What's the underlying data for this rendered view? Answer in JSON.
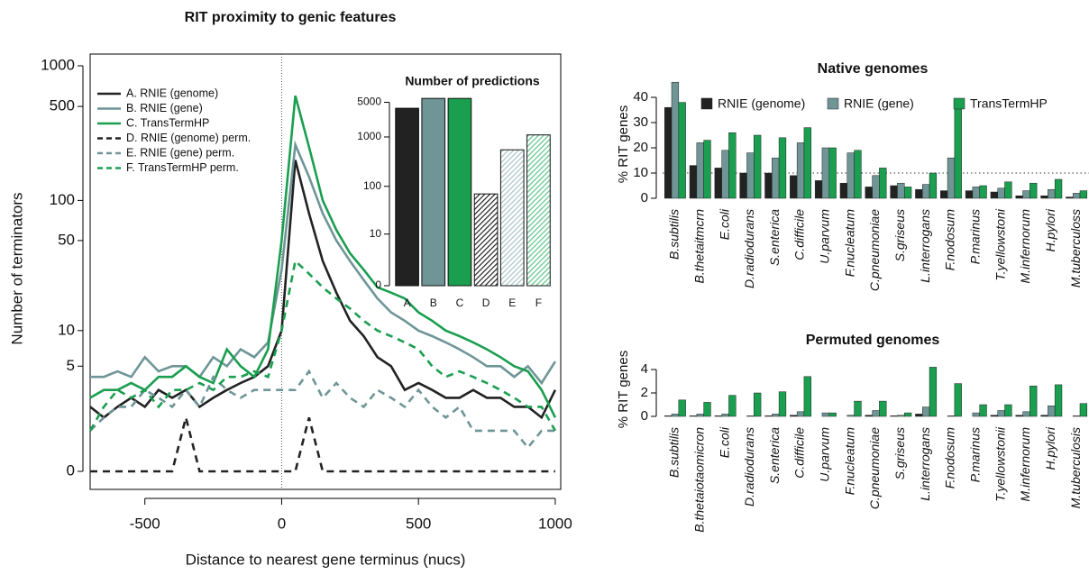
{
  "chart_data": [
    {
      "type": "line",
      "title": "RIT proximity to genic features",
      "xlabel": "Distance to nearest gene terminus (nucs)",
      "ylabel": "Number of terminators",
      "x": [
        -700,
        -650,
        -600,
        -550,
        -500,
        -450,
        -400,
        -350,
        -300,
        -250,
        -200,
        -150,
        -100,
        -50,
        0,
        50,
        100,
        150,
        200,
        250,
        300,
        350,
        400,
        450,
        500,
        550,
        600,
        650,
        700,
        750,
        800,
        850,
        900,
        950,
        1000
      ],
      "series": [
        {
          "name": "A. RNIE (genome)",
          "color": "#222222",
          "dash": false,
          "values": [
            2,
            1.5,
            2,
            2.5,
            2,
            3,
            2.5,
            3,
            2,
            2.5,
            3,
            3.5,
            4,
            5,
            10,
            200,
            80,
            35,
            20,
            12,
            9,
            6,
            5,
            3,
            3.5,
            3,
            2.5,
            2.5,
            3,
            2.5,
            2.5,
            2,
            2,
            1.5,
            3
          ]
        },
        {
          "name": "B. RNIE (gene)",
          "color": "#6f9597",
          "dash": false,
          "values": [
            4,
            4,
            4.5,
            4,
            6,
            4.5,
            5,
            5,
            4,
            6,
            5,
            7,
            6,
            8,
            30,
            260,
            150,
            80,
            50,
            35,
            25,
            18,
            14,
            12,
            10,
            9,
            8,
            7,
            6,
            5,
            5,
            4,
            5,
            3.5,
            5.5
          ]
        },
        {
          "name": "C. TransTermHP",
          "color": "#1a9e4f",
          "dash": false,
          "values": [
            2.5,
            3,
            3,
            3.5,
            3,
            4,
            4,
            5,
            4,
            3.5,
            7,
            5,
            4,
            7,
            50,
            600,
            250,
            100,
            60,
            40,
            30,
            22,
            20,
            18,
            14,
            12,
            10,
            9,
            8,
            7,
            6,
            5,
            4.5,
            3,
            1.5
          ]
        },
        {
          "name": "D. RNIE (genome) perm.",
          "color": "#222222",
          "dash": true,
          "values": [
            0,
            0,
            0,
            0,
            0,
            0,
            0,
            1.5,
            0,
            0,
            0,
            0,
            0,
            0,
            0,
            0,
            1.5,
            0,
            0,
            0,
            0,
            0,
            0,
            0,
            0,
            0,
            0,
            0,
            0,
            0,
            0,
            0,
            0,
            0,
            0
          ]
        },
        {
          "name": "E. RNIE (gene) perm.",
          "color": "#6f9597",
          "dash": true,
          "values": [
            1,
            1.5,
            2,
            2,
            3,
            2.5,
            2,
            3,
            2,
            4,
            3,
            2.5,
            3,
            3,
            3,
            3,
            4.5,
            2.5,
            3.5,
            2.5,
            2,
            3,
            2.5,
            2,
            3,
            2,
            1.5,
            2,
            1,
            1,
            1,
            1,
            0.5,
            1,
            1
          ]
        },
        {
          "name": "F. TransTermHP perm.",
          "color": "#1a9e4f",
          "dash": true,
          "values": [
            1,
            2,
            3,
            2.5,
            3,
            2,
            3,
            3,
            3.5,
            3,
            4,
            4,
            4.5,
            4,
            10,
            35,
            28,
            22,
            18,
            15,
            12,
            10,
            9,
            8,
            7,
            5,
            4,
            4.5,
            4,
            3.5,
            3,
            2.5,
            2,
            2,
            1
          ]
        }
      ],
      "xlim": [
        -700,
        1020
      ],
      "xticks": [
        -500,
        0,
        500,
        1000
      ],
      "ylim": [
        0,
        1000
      ],
      "yticks": [
        0,
        5,
        10,
        50,
        100,
        500,
        1000
      ],
      "yscale": "log1p",
      "vline": 0,
      "legend": "upper left"
    },
    {
      "type": "bar",
      "title": "Number of predictions",
      "categories": [
        "A",
        "B",
        "C",
        "D",
        "E",
        "F"
      ],
      "values": [
        3800,
        6000,
        6000,
        70,
        550,
        1100
      ],
      "colors": [
        "#222222",
        "#6f9597",
        "#1a9e4f",
        "#222222",
        "#a9c3c5",
        "#5cc486"
      ],
      "hatch": [
        false,
        false,
        false,
        true,
        true,
        true
      ],
      "ylim": [
        0,
        10000
      ],
      "yticks": [
        0,
        10,
        100,
        1000,
        5000
      ],
      "yscale": "log1p"
    },
    {
      "type": "grouped-bar",
      "title": "Native genomes",
      "ylabel": "% RIT genes",
      "categories": [
        "B.subtilis",
        "B.thetaitmcrn",
        "E.coli",
        "D.radiodurans",
        "S.enterica",
        "C.difficile",
        "U.parvum",
        "F.nucleatum",
        "C.pneumoniae",
        "S.griseus",
        "L.interrogans",
        "F.nodosum",
        "P.marinus",
        "T.yellowstoni",
        "M.infernorum",
        "H.pylori",
        "M.tuberculoss"
      ],
      "series": [
        {
          "name": "RNIE (genome)",
          "color": "#222222",
          "values": [
            36,
            13,
            12,
            10,
            10,
            9,
            7,
            6,
            4.5,
            5,
            3.5,
            3,
            3,
            2.5,
            1,
            1,
            0.5
          ]
        },
        {
          "name": "RNIE (gene)",
          "color": "#6f9597",
          "values": [
            46,
            22,
            19,
            18,
            16,
            22,
            20,
            18,
            9,
            6,
            5.5,
            16,
            4.5,
            4,
            3,
            3.5,
            2
          ]
        },
        {
          "name": "TransTermHP",
          "color": "#1a9e4f",
          "values": [
            38,
            23,
            26,
            25,
            24,
            28,
            20,
            19,
            12,
            4.5,
            10,
            37,
            5,
            6.5,
            6,
            7.5,
            3
          ]
        }
      ],
      "ylim": [
        0,
        45
      ],
      "yticks": [
        0,
        10,
        20,
        30,
        40
      ],
      "hline": 10,
      "legend": "top"
    },
    {
      "type": "grouped-bar",
      "title": "Permuted genomes",
      "ylabel": "% RIT genes",
      "categories": [
        "B.subtilis",
        "B.thetaiotaomicron",
        "E.coli",
        "D.radiodurans",
        "S.enterica",
        "C.difficile",
        "U.parvum",
        "F.nucleatum",
        "C.pneumoniae",
        "S.griseus",
        "L.interrogans",
        "F.nodosum",
        "P.marinus",
        "T.yellowstonii",
        "M.infernorum",
        "H.pylori",
        "M.tuberculosis"
      ],
      "series": [
        {
          "color": "#222222",
          "values": [
            0.05,
            0.05,
            0.05,
            0,
            0.05,
            0.1,
            0,
            0,
            0.1,
            0.05,
            0.2,
            0,
            0,
            0.1,
            0.1,
            0.1,
            0
          ]
        },
        {
          "color": "#6f9597",
          "values": [
            0.2,
            0.2,
            0.2,
            0.05,
            0.2,
            0.4,
            0.3,
            0.1,
            0.5,
            0.1,
            0.8,
            0.05,
            0.3,
            0.5,
            0.4,
            0.9,
            0.05
          ]
        },
        {
          "color": "#1a9e4f",
          "values": [
            1.4,
            1.2,
            1.8,
            2.0,
            2.1,
            3.4,
            0.3,
            1.3,
            1.3,
            0.3,
            4.2,
            2.8,
            1.0,
            1.0,
            2.6,
            2.7,
            1.1
          ]
        }
      ],
      "ylim": [
        0,
        5
      ],
      "yticks": [
        0,
        2,
        4
      ]
    }
  ]
}
